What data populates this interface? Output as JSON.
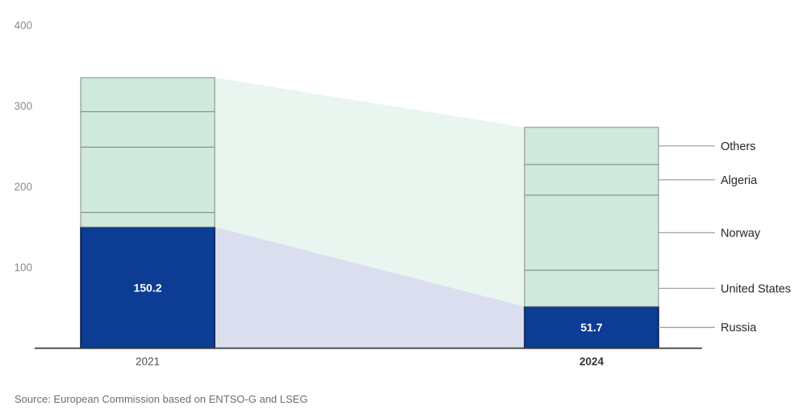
{
  "chart_data": {
    "type": "bar",
    "variant": "stacked-columns-with-flow-bands",
    "title": "",
    "categories": [
      "2021",
      "2024"
    ],
    "series": [
      {
        "name": "Russia",
        "values": [
          150.2,
          51.7
        ],
        "color": "#0c3c94"
      },
      {
        "name": "United States",
        "values": [
          18,
          45
        ],
        "color": "#cfe9dc"
      },
      {
        "name": "Norway",
        "values": [
          81,
          93
        ],
        "color": "#cfe9dc"
      },
      {
        "name": "Algeria",
        "values": [
          44,
          38
        ],
        "color": "#cfe9dc"
      },
      {
        "name": "Others",
        "values": [
          42,
          46
        ],
        "color": "#cfe9dc"
      }
    ],
    "value_labels": [
      "150.2",
      "51.7"
    ],
    "y_ticks": [
      100,
      200,
      300,
      400
    ],
    "ylim": [
      0,
      400
    ],
    "grid": false,
    "legend_position": "right-callouts",
    "source": "Source: European Commission based on ENTSO-G and LSEG",
    "colors": {
      "russia": "#0c3c94",
      "russia_stroke": "#06194a",
      "partner": "#cfe9dc",
      "partner_stroke": "#7f8c86",
      "band_top": "#e9f5ef",
      "band_russia": "#dadeef",
      "axis": "#3c3c3c",
      "callout_line": "#9a9a9a",
      "tick_label": "#8b8b8b",
      "label": "#24292e",
      "value_label": "#ffffff",
      "source_text": "#6e6e6e"
    }
  }
}
